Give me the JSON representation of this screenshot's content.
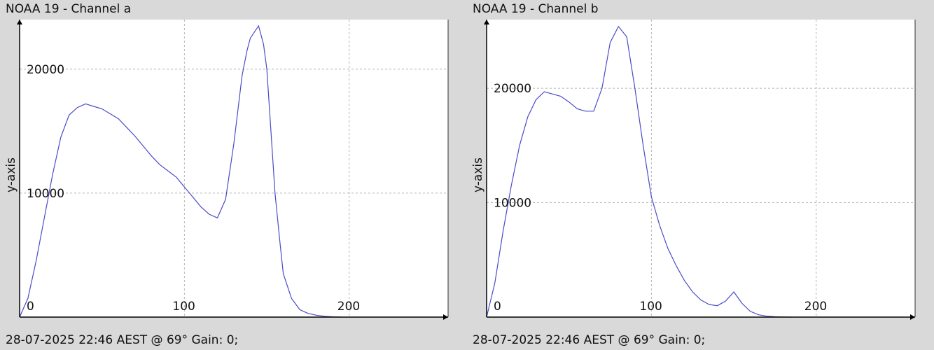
{
  "chart_data": [
    {
      "type": "line",
      "title": "NOAA 19 - Channel a",
      "ylabel": "y-axis",
      "xlabel": "",
      "xlim": [
        0,
        260
      ],
      "ylim": [
        0,
        24000
      ],
      "xticks": [
        0,
        100,
        200
      ],
      "yticks": [
        10000,
        20000
      ],
      "grid": true,
      "line_color": "#4b4bc8",
      "x": [
        0,
        5,
        10,
        15,
        20,
        25,
        30,
        35,
        40,
        45,
        50,
        55,
        60,
        65,
        70,
        75,
        80,
        85,
        90,
        95,
        100,
        105,
        110,
        115,
        120,
        125,
        130,
        135,
        138,
        140,
        145,
        148,
        150,
        152,
        155,
        158,
        160,
        165,
        170,
        175,
        180,
        185,
        190,
        195
      ],
      "y": [
        0,
        1500,
        4500,
        8000,
        11500,
        14500,
        16300,
        16900,
        17200,
        17000,
        16800,
        16400,
        16000,
        15300,
        14600,
        13800,
        13000,
        12300,
        11800,
        11300,
        10500,
        9700,
        8900,
        8300,
        8000,
        9500,
        14000,
        19500,
        21500,
        22500,
        23500,
        22000,
        20000,
        16000,
        10000,
        6000,
        3500,
        1500,
        600,
        300,
        150,
        60,
        20,
        0
      ],
      "footer": "28-07-2025 22:46 AEST @ 69° Gain: 0;"
    },
    {
      "type": "line",
      "title": "NOAA 19 - Channel b",
      "ylabel": "y-axis",
      "xlabel": "",
      "xlim": [
        0,
        260
      ],
      "ylim": [
        0,
        26000
      ],
      "xticks": [
        0,
        100,
        200
      ],
      "yticks": [
        10000,
        20000
      ],
      "grid": true,
      "line_color": "#4b4bc8",
      "x": [
        0,
        5,
        10,
        15,
        20,
        25,
        30,
        35,
        40,
        45,
        50,
        55,
        60,
        65,
        70,
        75,
        80,
        85,
        90,
        95,
        100,
        105,
        110,
        115,
        120,
        125,
        130,
        135,
        140,
        145,
        150,
        155,
        160,
        165,
        170,
        175,
        180,
        185
      ],
      "y": [
        0,
        3000,
        7500,
        11500,
        15000,
        17500,
        19000,
        19700,
        19500,
        19300,
        18800,
        18200,
        18000,
        18000,
        20000,
        24000,
        25400,
        24500,
        20000,
        15000,
        10500,
        8000,
        6000,
        4500,
        3200,
        2200,
        1500,
        1100,
        1000,
        1400,
        2200,
        1200,
        500,
        200,
        80,
        30,
        10,
        0
      ],
      "footer": "28-07-2025 22:46 AEST @ 69° Gain: 0;"
    }
  ]
}
